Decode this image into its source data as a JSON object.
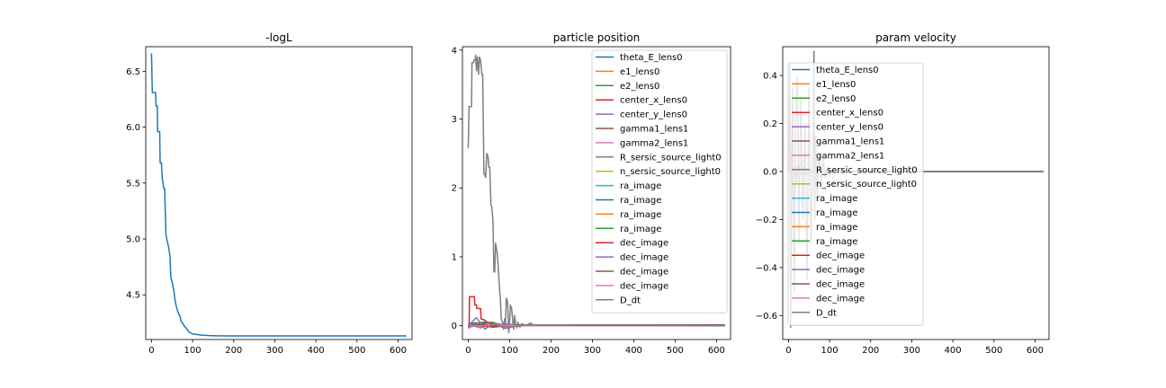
{
  "chart_data": [
    {
      "type": "line",
      "title": "-logL",
      "xlabel": "",
      "ylabel": "",
      "xlim": [
        -14,
        634
      ],
      "ylim": [
        4.1,
        6.72
      ],
      "xticks": [
        0,
        100,
        200,
        300,
        400,
        500,
        600
      ],
      "yticks": [
        4.5,
        5.0,
        5.5,
        6.0,
        6.5
      ],
      "ytick_labels": [
        "4.5",
        "5.0",
        "5.5",
        "6.0",
        "6.5"
      ],
      "legend": null,
      "series": [
        {
          "color": "#1f77b4",
          "x": [
            0,
            2,
            3,
            10,
            11,
            14,
            15,
            20,
            21,
            24,
            26,
            28,
            30,
            32,
            35,
            37,
            40,
            42,
            45,
            47,
            50,
            52,
            55,
            57,
            60,
            63,
            65,
            70,
            72,
            75,
            80,
            85,
            90,
            95,
            100,
            110,
            120,
            140,
            160,
            180,
            200,
            250,
            300,
            400,
            500,
            620
          ],
          "values": [
            6.66,
            6.31,
            6.31,
            6.31,
            6.19,
            6.19,
            5.96,
            5.96,
            5.68,
            5.68,
            5.55,
            5.5,
            5.45,
            5.45,
            5.04,
            5.0,
            4.95,
            4.92,
            4.84,
            4.65,
            4.62,
            4.58,
            4.52,
            4.46,
            4.4,
            4.36,
            4.34,
            4.3,
            4.26,
            4.25,
            4.22,
            4.2,
            4.17,
            4.16,
            4.15,
            4.145,
            4.14,
            4.135,
            4.133,
            4.132,
            4.132,
            4.132,
            4.132,
            4.132,
            4.132,
            4.132
          ]
        }
      ]
    },
    {
      "type": "line",
      "title": "particle position",
      "xlabel": "",
      "ylabel": "",
      "xlim": [
        -14,
        634
      ],
      "ylim": [
        -0.2,
        4.05
      ],
      "xticks": [
        0,
        100,
        200,
        300,
        400,
        500,
        600
      ],
      "yticks": [
        0,
        1,
        2,
        3,
        4
      ],
      "ytick_labels": [
        "0",
        "1",
        "2",
        "3",
        "4"
      ],
      "legend_position": "upper right",
      "series": [
        {
          "name": "theta_E_lens0",
          "color": "#1f77b4",
          "x": [
            0,
            40,
            80,
            120,
            160,
            620
          ],
          "values": [
            0.03,
            0.05,
            0.02,
            0.01,
            0.01,
            0.01
          ]
        },
        {
          "name": "e1_lens0",
          "color": "#ff7f0e",
          "x": [
            0,
            30,
            60,
            90,
            130,
            620
          ],
          "values": [
            0.0,
            0.04,
            -0.02,
            0.03,
            0.0,
            0.0
          ]
        },
        {
          "name": "e2_lens0",
          "color": "#2ca02c",
          "x": [
            0,
            30,
            60,
            90,
            130,
            620
          ],
          "values": [
            -0.02,
            0.03,
            0.05,
            -0.03,
            0.01,
            0.01
          ]
        },
        {
          "name": "center_x_lens0",
          "color": "#d62728",
          "x": [
            0,
            2,
            3,
            15,
            16,
            20,
            21,
            30,
            31,
            40,
            45,
            55,
            65,
            80,
            100,
            620
          ],
          "values": [
            -0.03,
            -0.03,
            0.42,
            0.42,
            0.3,
            0.3,
            0.25,
            0.25,
            0.1,
            0.08,
            0.05,
            0.04,
            0.0,
            0.02,
            0.01,
            0.0
          ]
        },
        {
          "name": "center_y_lens0",
          "color": "#9467bd",
          "x": [
            0,
            30,
            60,
            90,
            130,
            620
          ],
          "values": [
            0.02,
            -0.03,
            0.03,
            0.01,
            0.0,
            0.0
          ]
        },
        {
          "name": "gamma1_lens1",
          "color": "#8c564b",
          "x": [
            0,
            30,
            60,
            90,
            130,
            620
          ],
          "values": [
            0.01,
            0.02,
            -0.02,
            0.0,
            0.01,
            0.01
          ]
        },
        {
          "name": "gamma2_lens1",
          "color": "#e377c2",
          "x": [
            0,
            30,
            60,
            90,
            130,
            620
          ],
          "values": [
            -0.01,
            0.01,
            0.02,
            -0.01,
            0.0,
            0.0
          ]
        },
        {
          "name": "R_sersic_source_light0",
          "color": "#7f7f7f",
          "x": [
            0,
            2,
            3,
            8,
            9,
            13,
            14,
            17,
            18,
            20,
            22,
            25,
            27,
            30,
            33,
            35,
            38,
            40,
            42,
            45,
            48,
            50,
            52,
            55,
            57,
            60,
            62,
            64,
            66,
            70,
            72,
            75,
            78,
            80,
            83,
            85,
            88,
            90,
            92,
            95,
            98,
            100,
            102,
            105,
            108,
            110,
            112,
            115,
            118,
            120,
            125,
            130,
            140,
            150,
            160,
            170,
            200,
            250,
            300,
            620
          ],
          "values": [
            2.58,
            3.18,
            3.18,
            3.18,
            3.82,
            3.82,
            3.86,
            3.86,
            3.93,
            3.7,
            3.9,
            3.65,
            3.9,
            3.85,
            3.65,
            3.65,
            2.2,
            2.2,
            2.15,
            2.5,
            2.45,
            2.3,
            2.3,
            1.75,
            1.72,
            1.5,
            0.78,
            0.78,
            1.2,
            1.05,
            0.9,
            0.6,
            0.35,
            0.1,
            0.05,
            -0.05,
            0.1,
            0.0,
            0.4,
            0.35,
            -0.1,
            0.05,
            0.3,
            0.25,
            0.05,
            -0.05,
            0.15,
            0.02,
            -0.03,
            0.05,
            -0.02,
            0.03,
            0.0,
            0.04,
            0.0,
            0.01,
            0.0,
            0.0,
            0.0,
            0.0
          ]
        },
        {
          "name": "n_sersic_source_light0",
          "color": "#bcbd22",
          "x": [
            0,
            30,
            60,
            90,
            130,
            620
          ],
          "values": [
            0.0,
            0.02,
            -0.01,
            0.01,
            0.0,
            0.0
          ]
        },
        {
          "name": "ra_image",
          "color": "#17becf",
          "x": [
            0,
            30,
            60,
            90,
            130,
            620
          ],
          "values": [
            0.01,
            -0.02,
            0.02,
            0.0,
            0.0,
            0.0
          ]
        },
        {
          "name": "ra_image",
          "color": "#1f77b4",
          "x": [
            0,
            30,
            60,
            90,
            130,
            620
          ],
          "values": [
            0.02,
            0.01,
            -0.01,
            0.01,
            0.0,
            0.0
          ]
        },
        {
          "name": "ra_image",
          "color": "#ff7f0e",
          "x": [
            0,
            30,
            60,
            90,
            130,
            620
          ],
          "values": [
            -0.01,
            0.02,
            0.0,
            -0.02,
            0.0,
            0.0
          ]
        },
        {
          "name": "ra_image",
          "color": "#2ca02c",
          "x": [
            0,
            30,
            60,
            90,
            130,
            620
          ],
          "values": [
            0.0,
            -0.01,
            0.03,
            0.0,
            0.0,
            0.0
          ]
        },
        {
          "name": "dec_image",
          "color": "#d62728",
          "x": [
            0,
            30,
            60,
            90,
            130,
            620
          ],
          "values": [
            0.01,
            0.0,
            -0.02,
            0.01,
            0.0,
            0.0
          ]
        },
        {
          "name": "dec_image",
          "color": "#9467bd",
          "x": [
            0,
            30,
            60,
            90,
            130,
            620
          ],
          "values": [
            -0.02,
            0.01,
            0.0,
            0.02,
            0.0,
            0.0
          ]
        },
        {
          "name": "dec_image",
          "color": "#8c564b",
          "x": [
            0,
            30,
            60,
            90,
            130,
            620
          ],
          "values": [
            0.0,
            0.02,
            0.01,
            -0.01,
            0.0,
            0.0
          ]
        },
        {
          "name": "dec_image",
          "color": "#e377c2",
          "x": [
            0,
            30,
            60,
            90,
            130,
            620
          ],
          "values": [
            0.01,
            -0.01,
            0.02,
            0.0,
            0.0,
            0.0
          ]
        },
        {
          "name": "D_dt",
          "color": "#7f7f7f",
          "x": [
            0,
            20,
            40,
            60,
            90,
            130,
            620
          ],
          "values": [
            0.0,
            0.12,
            -0.05,
            0.03,
            -0.04,
            0.01,
            0.0
          ]
        }
      ]
    },
    {
      "type": "line",
      "title": "param velocity",
      "xlabel": "",
      "ylabel": "",
      "xlim": [
        -14,
        634
      ],
      "ylim": [
        -0.7,
        0.52
      ],
      "xticks": [
        0,
        100,
        200,
        300,
        400,
        500,
        600
      ],
      "yticks": [
        -0.6,
        -0.4,
        -0.2,
        0.0,
        0.2,
        0.4
      ],
      "ytick_labels": [
        "−0.6",
        "−0.4",
        "−0.2",
        "0.0",
        "0.2",
        "0.4"
      ],
      "legend_position": "upper left",
      "series": [
        {
          "name": "theta_E_lens0",
          "color": "#1f77b4",
          "x": [
            0,
            40,
            80,
            120,
            620
          ],
          "values": [
            0.01,
            0.0,
            0.005,
            0.0,
            0.0
          ]
        },
        {
          "name": "e1_lens0",
          "color": "#ff7f0e",
          "x": [
            0,
            40,
            80,
            120,
            620
          ],
          "values": [
            0.0,
            0.01,
            0.0,
            0.0,
            0.0
          ]
        },
        {
          "name": "e2_lens0",
          "color": "#2ca02c",
          "x": [
            0,
            40,
            80,
            120,
            620
          ],
          "values": [
            0.0,
            -0.01,
            0.0,
            0.0,
            0.0
          ]
        },
        {
          "name": "center_x_lens0",
          "color": "#d62728",
          "x": [
            0,
            3,
            6,
            15,
            20,
            30,
            40,
            620
          ],
          "values": [
            0.0,
            0.3,
            0.0,
            -0.1,
            0.0,
            0.03,
            0.0,
            0.0
          ]
        },
        {
          "name": "center_y_lens0",
          "color": "#9467bd",
          "x": [
            0,
            40,
            80,
            120,
            620
          ],
          "values": [
            0.0,
            0.01,
            0.0,
            0.0,
            0.0
          ]
        },
        {
          "name": "gamma1_lens1",
          "color": "#8c564b",
          "x": [
            0,
            40,
            80,
            120,
            620
          ],
          "values": [
            0.0,
            0.0,
            0.0,
            0.0,
            0.0
          ]
        },
        {
          "name": "gamma2_lens1",
          "color": "#e377c2",
          "x": [
            0,
            40,
            80,
            120,
            620
          ],
          "values": [
            0.0,
            0.0,
            0.0,
            0.0,
            0.0
          ]
        },
        {
          "name": "R_sersic_source_light0",
          "color": "#7f7f7f",
          "x": [
            0,
            2,
            3,
            5,
            8,
            10,
            14,
            18,
            22,
            25,
            30,
            35,
            40,
            45,
            50,
            55,
            60,
            62,
            64,
            66,
            70,
            75,
            80,
            85,
            90,
            95,
            100,
            110,
            120,
            130,
            150,
            620
          ],
          "values": [
            0.0,
            0.0,
            0.45,
            -0.65,
            -0.1,
            0.35,
            -0.5,
            0.3,
            0.4,
            -0.3,
            0.3,
            -0.2,
            0.2,
            -0.45,
            0.35,
            -0.3,
            0.1,
            0.5,
            -0.2,
            0.15,
            -0.1,
            0.08,
            -0.06,
            0.05,
            -0.03,
            0.02,
            -0.02,
            0.01,
            0.0,
            0.0,
            0.0,
            0.0
          ]
        },
        {
          "name": "n_sersic_source_light0",
          "color": "#bcbd22",
          "x": [
            0,
            40,
            80,
            120,
            620
          ],
          "values": [
            0.0,
            0.0,
            0.0,
            0.0,
            0.0
          ]
        },
        {
          "name": "ra_image",
          "color": "#17becf",
          "x": [
            0,
            40,
            80,
            120,
            620
          ],
          "values": [
            0.0,
            0.0,
            0.0,
            0.0,
            0.0
          ]
        },
        {
          "name": "ra_image",
          "color": "#1f77b4",
          "x": [
            0,
            40,
            80,
            120,
            620
          ],
          "values": [
            0.0,
            0.0,
            0.0,
            0.0,
            0.0
          ]
        },
        {
          "name": "ra_image",
          "color": "#ff7f0e",
          "x": [
            0,
            40,
            80,
            120,
            620
          ],
          "values": [
            0.0,
            0.0,
            0.0,
            0.0,
            0.0
          ]
        },
        {
          "name": "ra_image",
          "color": "#2ca02c",
          "x": [
            0,
            40,
            80,
            120,
            620
          ],
          "values": [
            0.0,
            0.0,
            0.0,
            0.0,
            0.0
          ]
        },
        {
          "name": "dec_image",
          "color": "#d62728",
          "x": [
            0,
            40,
            80,
            120,
            620
          ],
          "values": [
            0.0,
            0.0,
            0.0,
            0.0,
            0.0
          ]
        },
        {
          "name": "dec_image",
          "color": "#9467bd",
          "x": [
            0,
            40,
            80,
            120,
            620
          ],
          "values": [
            0.0,
            0.0,
            0.0,
            0.0,
            0.0
          ]
        },
        {
          "name": "dec_image",
          "color": "#8c564b",
          "x": [
            0,
            40,
            80,
            120,
            620
          ],
          "values": [
            0.0,
            0.0,
            0.0,
            0.0,
            0.0
          ]
        },
        {
          "name": "dec_image",
          "color": "#e377c2",
          "x": [
            0,
            40,
            80,
            120,
            620
          ],
          "values": [
            0.0,
            0.0,
            0.0,
            0.0,
            0.0
          ]
        },
        {
          "name": "D_dt",
          "color": "#7f7f7f",
          "x": [
            0,
            20,
            40,
            80,
            620
          ],
          "values": [
            0.0,
            0.02,
            -0.01,
            0.0,
            0.0
          ]
        }
      ]
    }
  ]
}
